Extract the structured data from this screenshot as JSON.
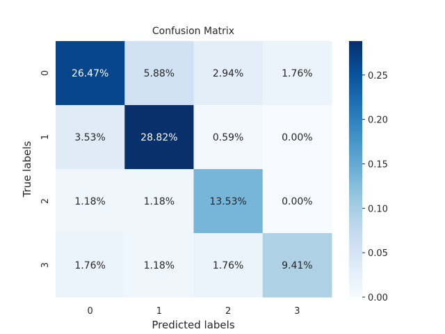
{
  "chart_data": {
    "type": "heatmap",
    "title": "Confusion Matrix",
    "xlabel": "Predicted labels",
    "ylabel": "True labels",
    "x_categories": [
      "0",
      "1",
      "2",
      "3"
    ],
    "y_categories": [
      "0",
      "1",
      "2",
      "3"
    ],
    "values": [
      [
        0.2647,
        0.0588,
        0.0294,
        0.0176
      ],
      [
        0.0353,
        0.2882,
        0.0059,
        0.0
      ],
      [
        0.0118,
        0.0118,
        0.1353,
        0.0
      ],
      [
        0.0176,
        0.0118,
        0.0176,
        0.0941
      ]
    ],
    "cell_labels": [
      [
        "26.47%",
        "5.88%",
        "2.94%",
        "1.76%"
      ],
      [
        "3.53%",
        "28.82%",
        "0.59%",
        "0.00%"
      ],
      [
        "1.18%",
        "1.18%",
        "13.53%",
        "0.00%"
      ],
      [
        "1.76%",
        "1.18%",
        "1.76%",
        "9.41%"
      ]
    ],
    "colormap": "Blues",
    "colorbar": {
      "range": [
        0,
        0.2882
      ],
      "ticks": [
        0.0,
        0.05,
        0.1,
        0.15,
        0.2,
        0.25
      ],
      "tick_labels": [
        "0.00",
        "0.05",
        "0.10",
        "0.15",
        "0.20",
        "0.25"
      ]
    },
    "grid": false,
    "legend": "colorbar-right"
  }
}
